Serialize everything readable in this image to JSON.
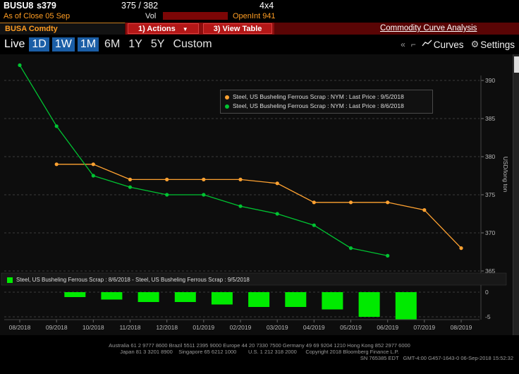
{
  "titlebar": {
    "ticker": "BUSU8",
    "last": "s379",
    "bid_ask": "375 / 382",
    "lot": "4x4",
    "as_of": "As of Close 05 Sep",
    "vol_label": "Vol",
    "open_int": "OpenInt 941"
  },
  "tabbar": {
    "tab": "BUSA Comdty",
    "actions": "1) Actions",
    "view_table": "3) View Table",
    "title": "Commodity Curve Analysis"
  },
  "toolbar": {
    "live": "Live",
    "ranges": [
      "1D",
      "1W",
      "1M",
      "6M",
      "1Y",
      "5Y",
      "Custom"
    ],
    "active_ranges": [
      "1D",
      "1W",
      "1M"
    ],
    "curves_label": "Curves",
    "settings_label": "Settings",
    "accent_blue": "#1b5ea6"
  },
  "chart_data": [
    {
      "type": "line",
      "title": "Commodity Curve Analysis",
      "x": [
        "08/2018",
        "09/2018",
        "10/2018",
        "11/2018",
        "12/2018",
        "01/2019",
        "02/2019",
        "03/2019",
        "04/2019",
        "05/2019",
        "06/2019",
        "07/2019",
        "08/2019"
      ],
      "ylabel": "USD/long ton",
      "ylim": [
        363,
        394
      ],
      "yticks": [
        390,
        385,
        380,
        375,
        370,
        365
      ],
      "grid": "horizontal-dashed",
      "legend_position": "top-center",
      "series": [
        {
          "name": "Steel, US Busheling Ferrous Scrap : NYM : Last Price : 9/5/2018",
          "color": "#ffa231",
          "start_index": 1,
          "values": [
            379,
            379,
            377,
            377,
            377,
            377,
            376.5,
            374,
            374,
            374,
            373,
            368
          ]
        },
        {
          "name": "Steel, US Busheling Ferrous Scrap : NYM : Last Price : 8/6/2018",
          "color": "#00c432",
          "start_index": 0,
          "values": [
            392,
            384,
            377.5,
            376,
            375,
            375,
            373.5,
            372.5,
            371,
            368,
            367
          ]
        }
      ]
    },
    {
      "type": "bar",
      "name": "Steel, US Busheling Ferrous Scrap : 8/6/2018 - Steel, US Busheling Ferrous Scrap : 9/5/2018",
      "color": "#00ea00",
      "categories": [
        "09/2018",
        "10/2018",
        "11/2018",
        "12/2018",
        "01/2019",
        "02/2019",
        "03/2019",
        "04/2019",
        "05/2019",
        "06/2019"
      ],
      "values": [
        -1,
        -1.5,
        -2,
        -2,
        -2.5,
        -3,
        -3,
        -3.5,
        -5,
        -5.5
      ],
      "ylim": [
        -6,
        0.5
      ],
      "yticks": [
        0,
        -5
      ]
    }
  ],
  "footer": {
    "line1": "Australia 61 2 9777 8600 Brazil 5511 2395 9000 Europe 44 20 7330 7500 Germany 49 69 9204 1210 Hong Kong 852 2977 6000",
    "line2": "Japan 81 3 3201 8900    Singapore 65 6212 1000        U.S. 1 212 318 2000      Copyright 2018 Bloomberg Finance L.P.",
    "line3": "SN 765385 EDT   GMT-4:00 G457-1643-0 06-Sep-2018 15:52:32"
  }
}
